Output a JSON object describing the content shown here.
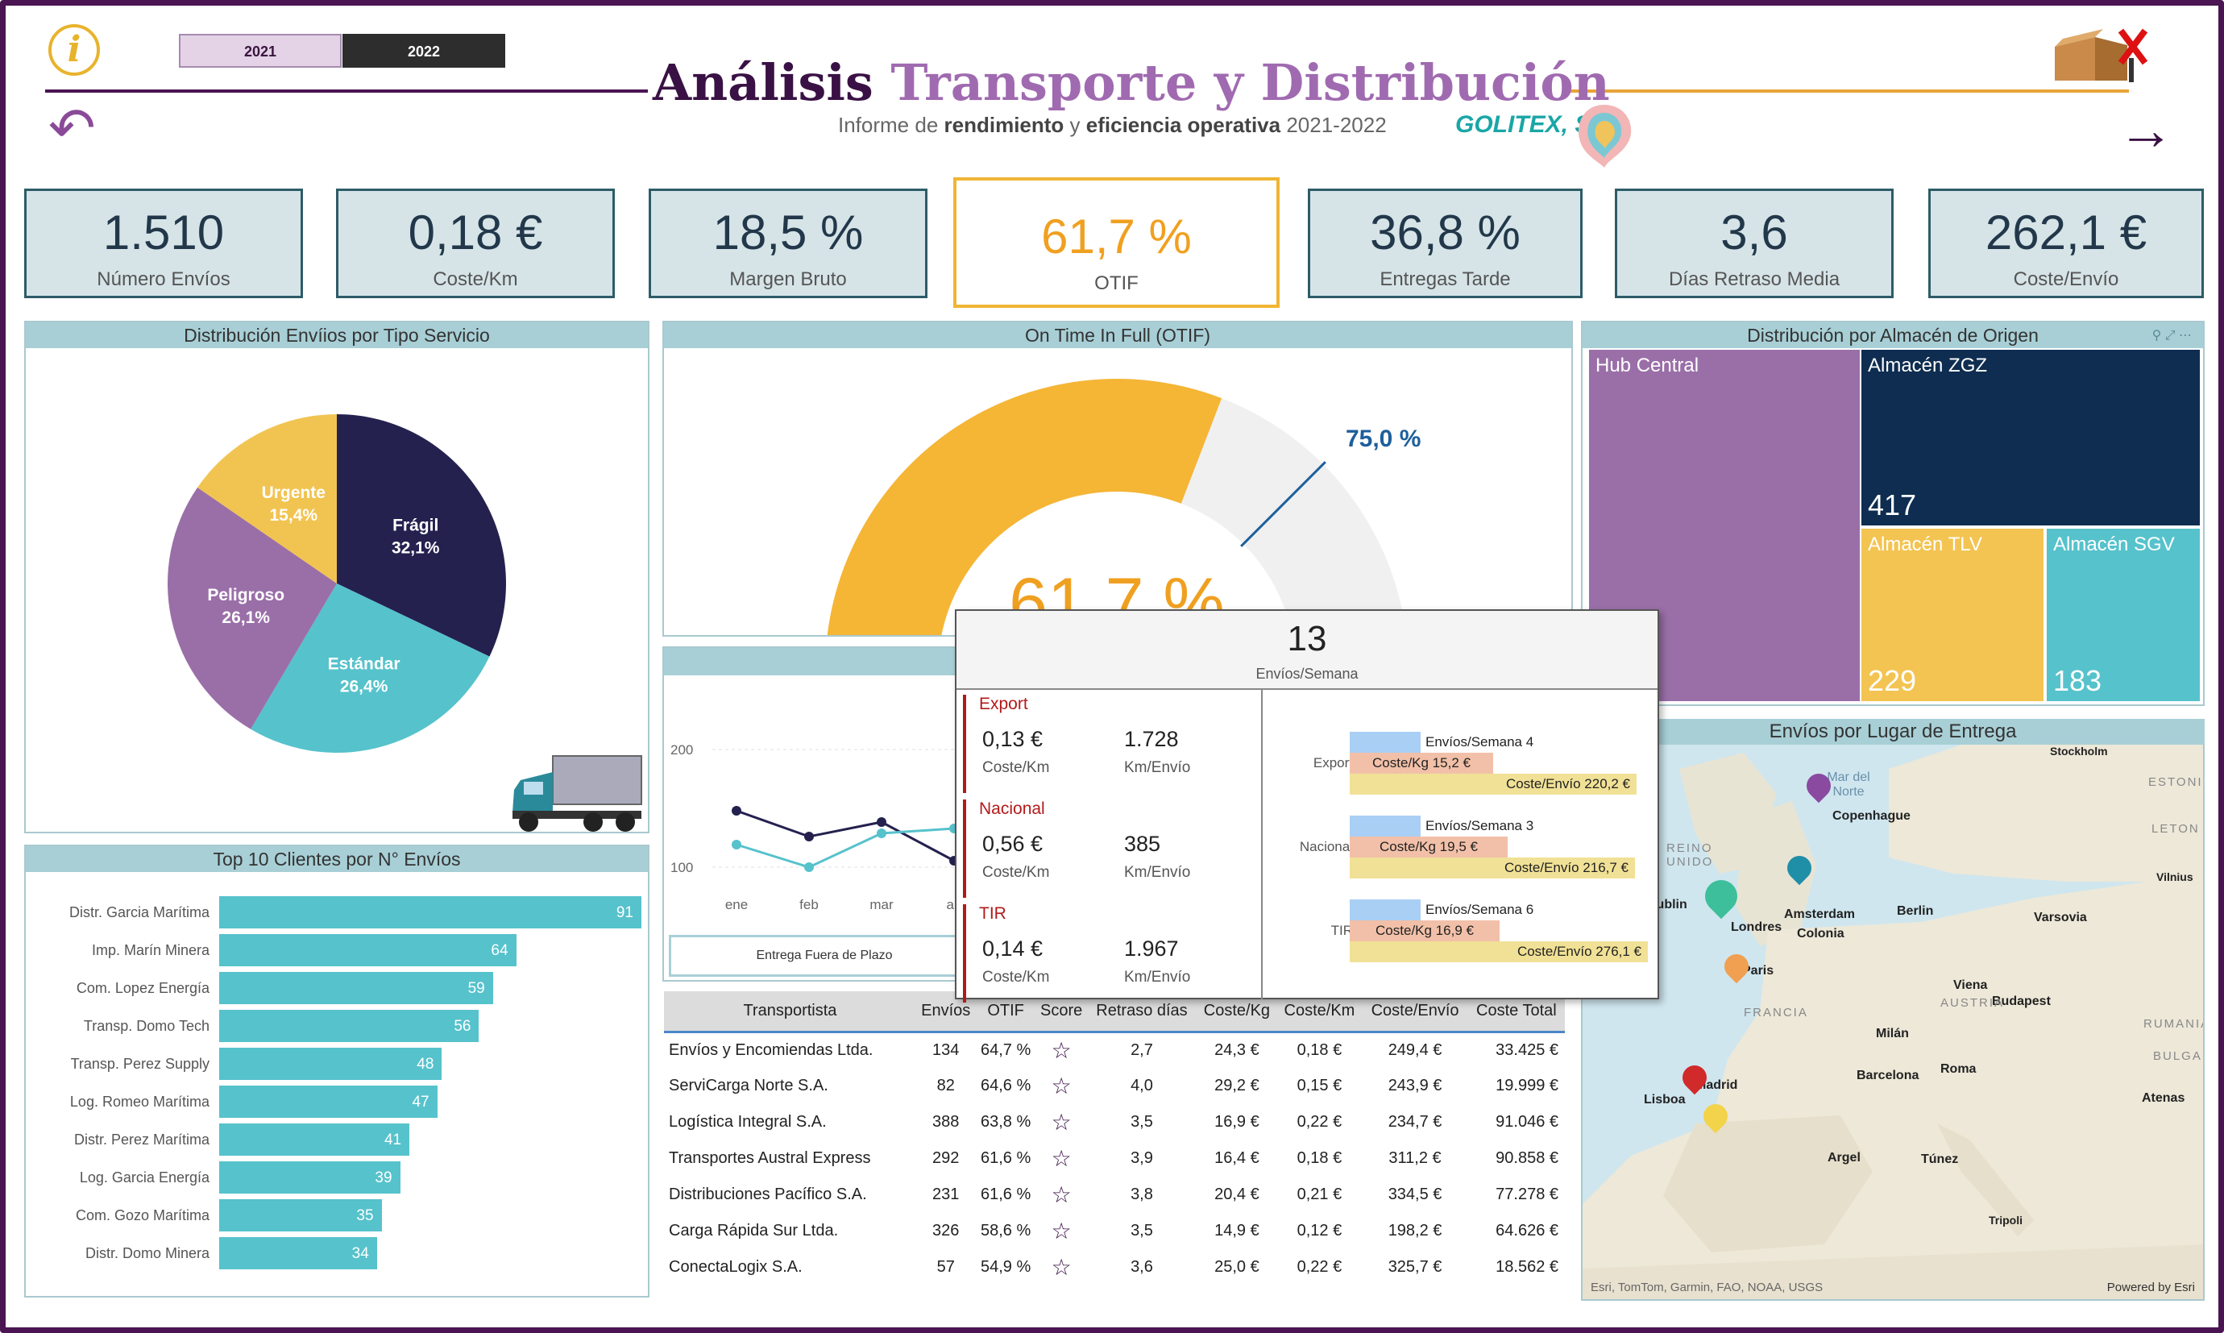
{
  "header": {
    "title_part1": "Análisis",
    "title_part2": "Transporte y Distribución",
    "subtitle_pre": "Informe de ",
    "subtitle_b1": "rendimiento",
    "subtitle_mid": " y ",
    "subtitle_b2": "eficiencia operativa",
    "subtitle_post": " 2021-2022",
    "company": "GOLITEX, S.L.",
    "info_icon": "i",
    "year_2021": "2021",
    "year_2022": "2022"
  },
  "kpis": [
    {
      "value": "1.510",
      "label": "Número Envíos"
    },
    {
      "value": "0,18 €",
      "label": "Coste/Km"
    },
    {
      "value": "18,5 %",
      "label": "Margen Bruto"
    },
    {
      "value": "61,7 %",
      "label": "OTIF"
    },
    {
      "value": "36,8 %",
      "label": "Entregas Tarde"
    },
    {
      "value": "3,6",
      "label": "Días Retraso Media"
    },
    {
      "value": "262,1 €",
      "label": "Coste/Envío"
    }
  ],
  "pie": {
    "title": "Distribución Envíios por Tipo Servicio",
    "slices": [
      {
        "name": "Frágil",
        "pct": "32,1%",
        "value": 32.1,
        "color": "#24214f"
      },
      {
        "name": "Estándar",
        "pct": "26,4%",
        "value": 26.4,
        "color": "#56c2cc"
      },
      {
        "name": "Peligroso",
        "pct": "26,1%",
        "value": 26.1,
        "color": "#9a6fa8"
      },
      {
        "name": "Urgente",
        "pct": "15,4%",
        "value": 15.4,
        "color": "#f1c452"
      }
    ]
  },
  "gauge": {
    "title": "On Time In Full (OTIF)",
    "value": 61.7,
    "value_label": "61,7 %",
    "target": 75,
    "target_label": "75,0 %"
  },
  "treemap": {
    "title": "Distribución por Almacén de Origen",
    "items": [
      {
        "name": "Hub Central",
        "value": "",
        "color": "#9a6fa8"
      },
      {
        "name": "Almacén ZGZ",
        "value": "417",
        "color": "#0e2d50"
      },
      {
        "name": "Almacén TLV",
        "value": "229",
        "color": "#f3c452"
      },
      {
        "name": "Almacén SGV",
        "value": "183",
        "color": "#56c2cc"
      }
    ]
  },
  "clients": {
    "title": "Top 10 Clientes por N° Envíos",
    "rows": [
      {
        "name": "Distr. Garcia Marítima",
        "v": 91
      },
      {
        "name": "Imp. Marín Minera",
        "v": 64
      },
      {
        "name": "Com. Lopez Energía",
        "v": 59
      },
      {
        "name": "Transp. Domo Tech",
        "v": 56
      },
      {
        "name": "Transp. Perez Supply",
        "v": 48
      },
      {
        "name": "Log. Romeo Marítima",
        "v": 47
      },
      {
        "name": "Distr. Perez Marítima",
        "v": 41
      },
      {
        "name": "Log. Garcia Energía",
        "v": 39
      },
      {
        "name": "Com. Gozo Marítima",
        "v": 35
      },
      {
        "name": "Distr. Domo Minera",
        "v": 34
      }
    ]
  },
  "line": {
    "y_ticks": [
      "200",
      "100"
    ],
    "months": [
      "ene",
      "feb",
      "mar",
      "ab"
    ],
    "legend": "Entrega Fuera de Plazo"
  },
  "tooltip": {
    "big": "13",
    "big_label": "Envíos/Semana",
    "sections": [
      {
        "name": "Export",
        "v1": "0,13 €",
        "l1": "Coste/Km",
        "v2": "1.728",
        "l2": "Km/Envío"
      },
      {
        "name": "Nacional",
        "v1": "0,56 €",
        "l1": "Coste/Km",
        "v2": "385",
        "l2": "Km/Envío"
      },
      {
        "name": "TIR",
        "v1": "0,14 €",
        "l1": "Coste/Km",
        "v2": "1.967",
        "l2": "Km/Envío"
      }
    ],
    "bars": [
      {
        "cat": "Export",
        "b1": "Envíos/Semana 4",
        "b2": "Coste/Kg 15,2 €",
        "b3": "Coste/Envío 220,2 €"
      },
      {
        "cat": "Nacional",
        "b1": "Envíos/Semana 3",
        "b2": "Coste/Kg 19,5 €",
        "b3": "Coste/Envío 216,7 €"
      },
      {
        "cat": "TIR",
        "b1": "Envíos/Semana 6",
        "b2": "Coste/Kg 16,9 €",
        "b3": "Coste/Envío 276,1 €"
      }
    ]
  },
  "table": {
    "headers": [
      "Transportista",
      "Envíos",
      "OTIF",
      "Score",
      "Retraso días",
      "Coste/Kg",
      "Coste/Km",
      "Coste/Envío",
      "Coste Total"
    ],
    "rows": [
      {
        "name": "Envíos y Encomiendas Ltda.",
        "envios": "134",
        "otif": "64,7 %",
        "retraso": "2,7",
        "kg": "24,3 €",
        "km": "0,18 €",
        "env": "249,4 €",
        "total": "33.425 €"
      },
      {
        "name": "ServiCarga Norte S.A.",
        "envios": "82",
        "otif": "64,6 %",
        "retraso": "4,0",
        "kg": "29,2 €",
        "km": "0,15 €",
        "env": "243,9 €",
        "total": "19.999 €"
      },
      {
        "name": "Logística Integral S.A.",
        "envios": "388",
        "otif": "63,8 %",
        "retraso": "3,5",
        "kg": "16,9 €",
        "km": "0,22 €",
        "env": "234,7 €",
        "total": "91.046 €"
      },
      {
        "name": "Transportes Austral Express",
        "envios": "292",
        "otif": "61,6 %",
        "retraso": "3,9",
        "kg": "16,4 €",
        "km": "0,18 €",
        "env": "311,2 €",
        "total": "90.858 €"
      },
      {
        "name": "Distribuciones Pacífico S.A.",
        "envios": "231",
        "otif": "61,6 %",
        "retraso": "3,8",
        "kg": "20,4 €",
        "km": "0,21 €",
        "env": "334,5 €",
        "total": "77.278 €"
      },
      {
        "name": "Carga Rápida Sur Ltda.",
        "envios": "326",
        "otif": "58,6 %",
        "retraso": "3,5",
        "kg": "14,9 €",
        "km": "0,12 €",
        "env": "198,2 €",
        "total": "64.626 €"
      },
      {
        "name": "ConectaLogix S.A.",
        "envios": "57",
        "otif": "54,9 %",
        "retraso": "3,6",
        "kg": "25,0 €",
        "km": "0,22 €",
        "env": "325,7 €",
        "total": "18.562 €"
      }
    ]
  },
  "map": {
    "title": "Envíos por Lugar de Entrega",
    "cities": [
      "Stockholm",
      "Mar del Norte",
      "Copenhague",
      "Dublin",
      "Amsterdam",
      "Berlin",
      "Varsovia",
      "Londres",
      "Colonia",
      "Paris",
      "Viena",
      "Budapest",
      "Milán",
      "Barcelona",
      "Roma",
      "Madrid",
      "Lisboa",
      "Argel",
      "Túnez",
      "Atenas",
      "Vilnius",
      "Tripoli"
    ],
    "regions": [
      "ESTONI",
      "LETON",
      "REINO UNIDO",
      "FRANCIA",
      "AUSTRIA",
      "RUMANIA",
      "BULGAR"
    ],
    "attribution": "Esri, TomTom, Garmin, FAO, NOAA, USGS",
    "powered": "Powered by Esri"
  }
}
